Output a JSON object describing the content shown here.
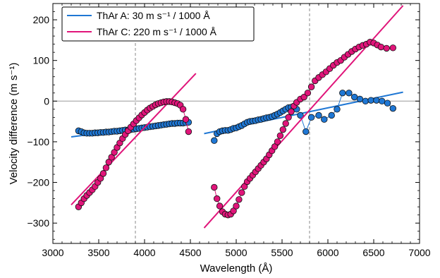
{
  "chart_data": {
    "type": "scatter",
    "xlabel": "Wavelength (Å)",
    "ylabel": "Velocity difference (m s⁻¹)",
    "xlim": [
      3000,
      7000
    ],
    "ylim": [
      -350,
      240
    ],
    "xticks": [
      3000,
      3500,
      4000,
      4500,
      5000,
      5500,
      6000,
      6500,
      7000
    ],
    "yticks": [
      -300,
      -200,
      -100,
      0,
      100,
      200
    ],
    "xtick_labels": [
      "3000",
      "3500",
      "4000",
      "4500",
      "5000",
      "5500",
      "6000",
      "6500",
      "7000"
    ],
    "ytick_labels": [
      "−300",
      "−200",
      "−100",
      "0",
      "100",
      "200"
    ],
    "legend_position": "top-left",
    "vlines": [
      3900,
      5800
    ],
    "hline": 0,
    "series": [
      {
        "name": "ThAr A: 30 m s⁻¹ / 1000 Å",
        "color": "#1f77d4",
        "fit_segments": [
          {
            "x": [
              3200,
              4480
            ],
            "y": [
              -88,
              -50
            ]
          },
          {
            "x": [
              4650,
              6820
            ],
            "y": [
              -80,
              22
            ]
          }
        ],
        "segments": [
          {
            "x": [
              3280,
              3310,
              3340,
              3370,
              3400,
              3430,
              3460,
              3490,
              3520,
              3550,
              3580,
              3610,
              3640,
              3670,
              3700,
              3730,
              3760,
              3790,
              3820,
              3850,
              3880,
              3910,
              3940,
              3970,
              4000,
              4030,
              4060,
              4090,
              4120,
              4150,
              4180,
              4210,
              4240,
              4270,
              4300,
              4330,
              4360,
              4390,
              4420,
              4450,
              4480
            ],
            "y": [
              -73,
              -75,
              -78,
              -79,
              -79,
              -79,
              -78,
              -78,
              -77,
              -77,
              -76,
              -76,
              -75,
              -74,
              -74,
              -73,
              -72,
              -71,
              -71,
              -70,
              -69,
              -68,
              -67,
              -66,
              -65,
              -64,
              -63,
              -62,
              -61,
              -60,
              -59,
              -58,
              -57,
              -56,
              -55,
              -55,
              -54,
              -54,
              -54,
              -53,
              -52
            ]
          },
          {
            "x": [
              4760,
              4790,
              4820,
              4850,
              4880,
              4910,
              4940,
              4970,
              5000,
              5030,
              5060,
              5090,
              5120,
              5150,
              5180,
              5210,
              5240,
              5270,
              5300,
              5330,
              5360,
              5390,
              5420,
              5450,
              5480,
              5510,
              5540,
              5570,
              5600,
              5630,
              5660
            ],
            "y": [
              -97,
              -80,
              -75,
              -73,
              -72,
              -72,
              -70,
              -67,
              -66,
              -63,
              -60,
              -56,
              -52,
              -50,
              -49,
              -48,
              -46,
              -45,
              -43,
              -41,
              -40,
              -38,
              -35,
              -32,
              -28,
              -24,
              -20,
              -16,
              -15,
              -17,
              -20
            ]
          },
          {
            "x": [
              5700,
              5760,
              5820,
              5900,
              5960,
              6040,
              6100,
              6160,
              6230,
              6290,
              6350,
              6410,
              6470,
              6530,
              6590,
              6650,
              6710
            ],
            "y": [
              -35,
              -75,
              -40,
              -35,
              -45,
              -35,
              -20,
              20,
              20,
              10,
              5,
              0,
              2,
              2,
              0,
              -5,
              -18
            ]
          }
        ]
      },
      {
        "name": "ThAr C: 220 m s⁻¹ / 1000 Å",
        "color": "#e0157a",
        "fit_segments": [
          {
            "x": [
              3200,
              4560
            ],
            "y": [
              -255,
              68
            ]
          },
          {
            "x": [
              4650,
              6820
            ],
            "y": [
              -312,
              235
            ]
          }
        ],
        "segments": [
          {
            "x": [
              3280,
              3310,
              3340,
              3370,
              3400,
              3430,
              3460,
              3490,
              3520,
              3550,
              3580,
              3610,
              3640,
              3670,
              3700,
              3730,
              3760,
              3790,
              3820,
              3850,
              3880,
              3910,
              3940,
              3970,
              4000,
              4030,
              4060,
              4090,
              4120,
              4150,
              4180,
              4210,
              4240,
              4270,
              4300,
              4330,
              4360,
              4390,
              4420,
              4450,
              4480
            ],
            "y": [
              -260,
              -250,
              -240,
              -232,
              -225,
              -218,
              -210,
              -200,
              -190,
              -178,
              -164,
              -150,
              -138,
              -126,
              -114,
              -103,
              -92,
              -82,
              -73,
              -64,
              -56,
              -48,
              -41,
              -34,
              -28,
              -22,
              -17,
              -13,
              -9,
              -6,
              -4,
              -2,
              -1,
              -1,
              -2,
              -4,
              -6,
              -10,
              -20,
              -45,
              -75
            ]
          },
          {
            "x": [
              4760,
              4790,
              4820,
              4850,
              4880,
              4910,
              4940,
              4970,
              5000,
              5030,
              5060,
              5090,
              5120,
              5150,
              5180,
              5210,
              5240,
              5270,
              5300,
              5330,
              5360,
              5390,
              5420,
              5450,
              5480,
              5510,
              5540,
              5570,
              5600,
              5630,
              5660
            ],
            "y": [
              -212,
              -240,
              -258,
              -272,
              -278,
              -280,
              -278,
              -270,
              -258,
              -242,
              -225,
              -210,
              -198,
              -190,
              -182,
              -174,
              -166,
              -158,
              -150,
              -142,
              -132,
              -122,
              -112,
              -100,
              -85,
              -70,
              -55,
              -40,
              -26,
              -12,
              -3
            ]
          },
          {
            "x": [
              5700,
              5740,
              5780,
              5820,
              5860,
              5900,
              5940,
              5980,
              6020,
              6060,
              6100,
              6140,
              6180,
              6220,
              6260,
              6300,
              6340,
              6380,
              6420,
              6460,
              6500,
              6540,
              6580,
              6640,
              6710
            ],
            "y": [
              5,
              10,
              20,
              35,
              50,
              58,
              65,
              72,
              80,
              88,
              95,
              100,
              108,
              115,
              122,
              128,
              133,
              137,
              140,
              145,
              143,
              138,
              133,
              130,
              131
            ]
          }
        ]
      }
    ]
  }
}
